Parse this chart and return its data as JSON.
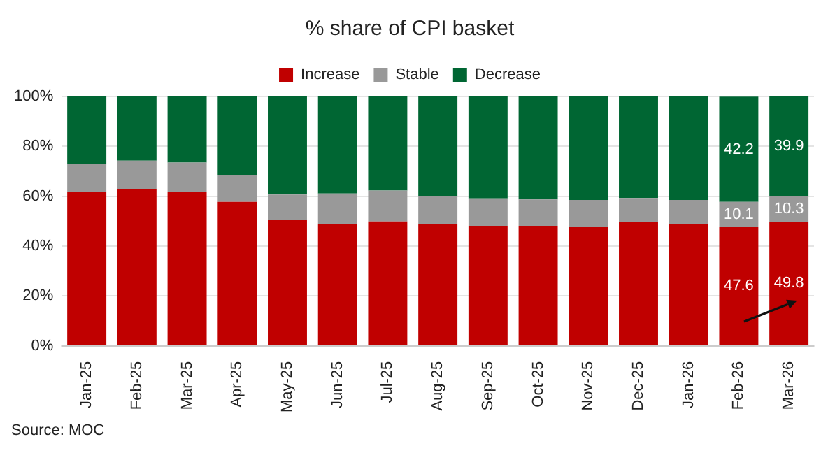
{
  "chart_data": {
    "type": "bar",
    "title": "% share of CPI basket",
    "stacked": true,
    "legend": "top",
    "grid": "y",
    "categories": [
      "Jan-25",
      "Feb-25",
      "Mar-25",
      "Apr-25",
      "May-25",
      "Jun-25",
      "Jul-25",
      "Aug-25",
      "Sep-25",
      "Oct-25",
      "Nov-25",
      "Dec-25",
      "Jan-26",
      "Feb-26",
      "Mar-26"
    ],
    "series": [
      {
        "name": "Increase",
        "color": "#c00000",
        "values": [
          61.9,
          62.7,
          61.9,
          57.7,
          50.5,
          48.7,
          49.9,
          48.9,
          48.1,
          48.1,
          47.7,
          49.7,
          48.9,
          47.6,
          49.8
        ],
        "value_labels": [
          null,
          null,
          null,
          null,
          null,
          null,
          null,
          null,
          null,
          null,
          null,
          null,
          null,
          "47.6",
          "49.8"
        ]
      },
      {
        "name": "Stable",
        "color": "#999999",
        "values": [
          11.0,
          11.6,
          11.6,
          10.6,
          10.2,
          12.4,
          12.4,
          11.2,
          11.0,
          10.6,
          10.8,
          9.6,
          9.6,
          10.1,
          10.3
        ],
        "value_labels": [
          null,
          null,
          null,
          null,
          null,
          null,
          null,
          null,
          null,
          null,
          null,
          null,
          null,
          "10.1",
          "10.3"
        ]
      },
      {
        "name": "Decrease",
        "color": "#006633",
        "values": [
          27.1,
          25.7,
          26.5,
          31.7,
          39.3,
          38.9,
          37.7,
          39.9,
          40.9,
          41.3,
          41.5,
          40.7,
          41.5,
          42.2,
          39.9
        ],
        "value_labels": [
          null,
          null,
          null,
          null,
          null,
          null,
          null,
          null,
          null,
          null,
          null,
          null,
          null,
          "42.2",
          "39.9"
        ]
      }
    ],
    "ylim": [
      0,
      100
    ],
    "yticks": [
      {
        "value": 0,
        "label": "0%"
      },
      {
        "value": 20,
        "label": "20%"
      },
      {
        "value": 40,
        "label": "40%"
      },
      {
        "value": 60,
        "label": "60%"
      },
      {
        "value": 80,
        "label": "80%"
      },
      {
        "value": 100,
        "label": "100%"
      }
    ],
    "annotations": [
      "Source: MOC"
    ]
  }
}
